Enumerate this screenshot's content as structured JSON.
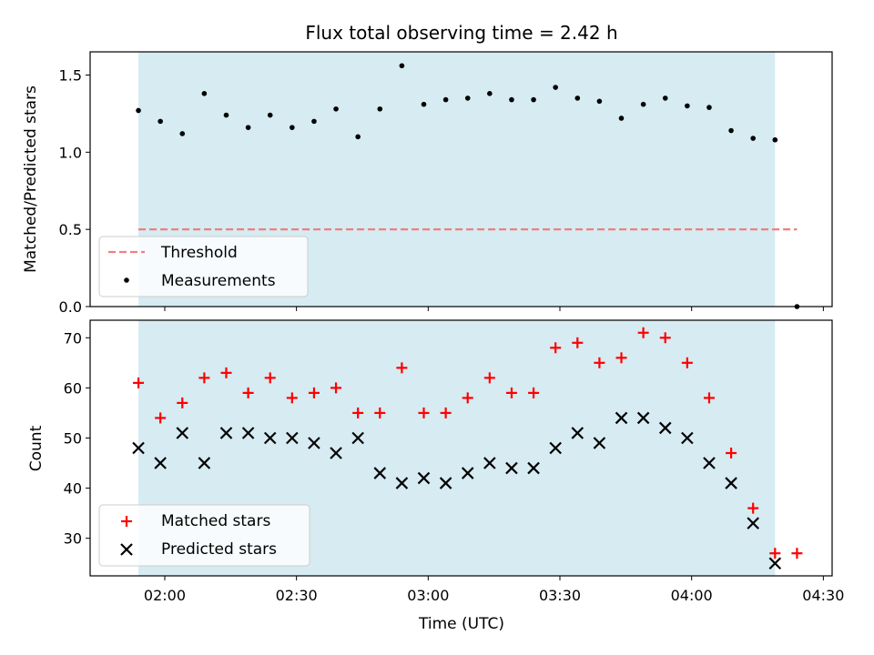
{
  "chart_data": {
    "type": "scatter",
    "title": "Flux total observing time = 2.42 h",
    "xlabel": "Time (UTC)",
    "x_ticks": [
      "02:00",
      "02:30",
      "03:00",
      "03:30",
      "04:00",
      "04:30"
    ],
    "x_range": [
      "01:43",
      "04:32"
    ],
    "observing_window": [
      "01:54",
      "04:19"
    ],
    "times": [
      "01:54",
      "01:59",
      "02:04",
      "02:09",
      "02:14",
      "02:19",
      "02:24",
      "02:29",
      "02:34",
      "02:39",
      "02:44",
      "02:49",
      "02:54",
      "02:59",
      "03:04",
      "03:09",
      "03:14",
      "03:19",
      "03:24",
      "03:29",
      "03:34",
      "03:39",
      "03:44",
      "03:49",
      "03:54",
      "03:59",
      "04:04",
      "04:09",
      "04:14",
      "04:19",
      "04:24"
    ],
    "top": {
      "ylabel": "Matched/Predicted stars",
      "ylim": [
        0,
        1.65
      ],
      "y_ticks": [
        "0.0",
        "0.5",
        "1.0",
        "1.5"
      ],
      "threshold": {
        "name": "Threshold",
        "value": 0.5,
        "color": "#f07f7f"
      },
      "measurements": {
        "name": "Measurements",
        "color": "#000000",
        "values": [
          1.27,
          1.2,
          1.12,
          1.38,
          1.24,
          1.16,
          1.24,
          1.16,
          1.2,
          1.28,
          1.1,
          1.28,
          1.56,
          1.31,
          1.34,
          1.35,
          1.38,
          1.34,
          1.34,
          1.42,
          1.35,
          1.33,
          1.22,
          1.31,
          1.35,
          1.3,
          1.29,
          1.14,
          1.09,
          1.08,
          0.0
        ]
      }
    },
    "bottom": {
      "ylabel": "Count",
      "ylim": [
        22.5,
        73.5
      ],
      "y_ticks": [
        "30",
        "40",
        "50",
        "60",
        "70"
      ],
      "series": [
        {
          "name": "Matched stars",
          "marker": "+",
          "color": "#ff0000",
          "values": [
            61,
            54,
            57,
            62,
            63,
            59,
            62,
            58,
            59,
            60,
            55,
            55,
            64,
            55,
            55,
            58,
            62,
            59,
            59,
            68,
            69,
            65,
            66,
            71,
            70,
            65,
            58,
            47,
            36,
            27,
            27
          ]
        },
        {
          "name": "Predicted stars",
          "marker": "x",
          "color": "#000000",
          "values": [
            48,
            45,
            51,
            45,
            51,
            51,
            50,
            50,
            49,
            47,
            50,
            43,
            41,
            42,
            41,
            43,
            45,
            44,
            44,
            48,
            51,
            49,
            54,
            54,
            52,
            50,
            45,
            41,
            33,
            25,
            null
          ]
        }
      ]
    },
    "shade_color": "#add8e6"
  }
}
